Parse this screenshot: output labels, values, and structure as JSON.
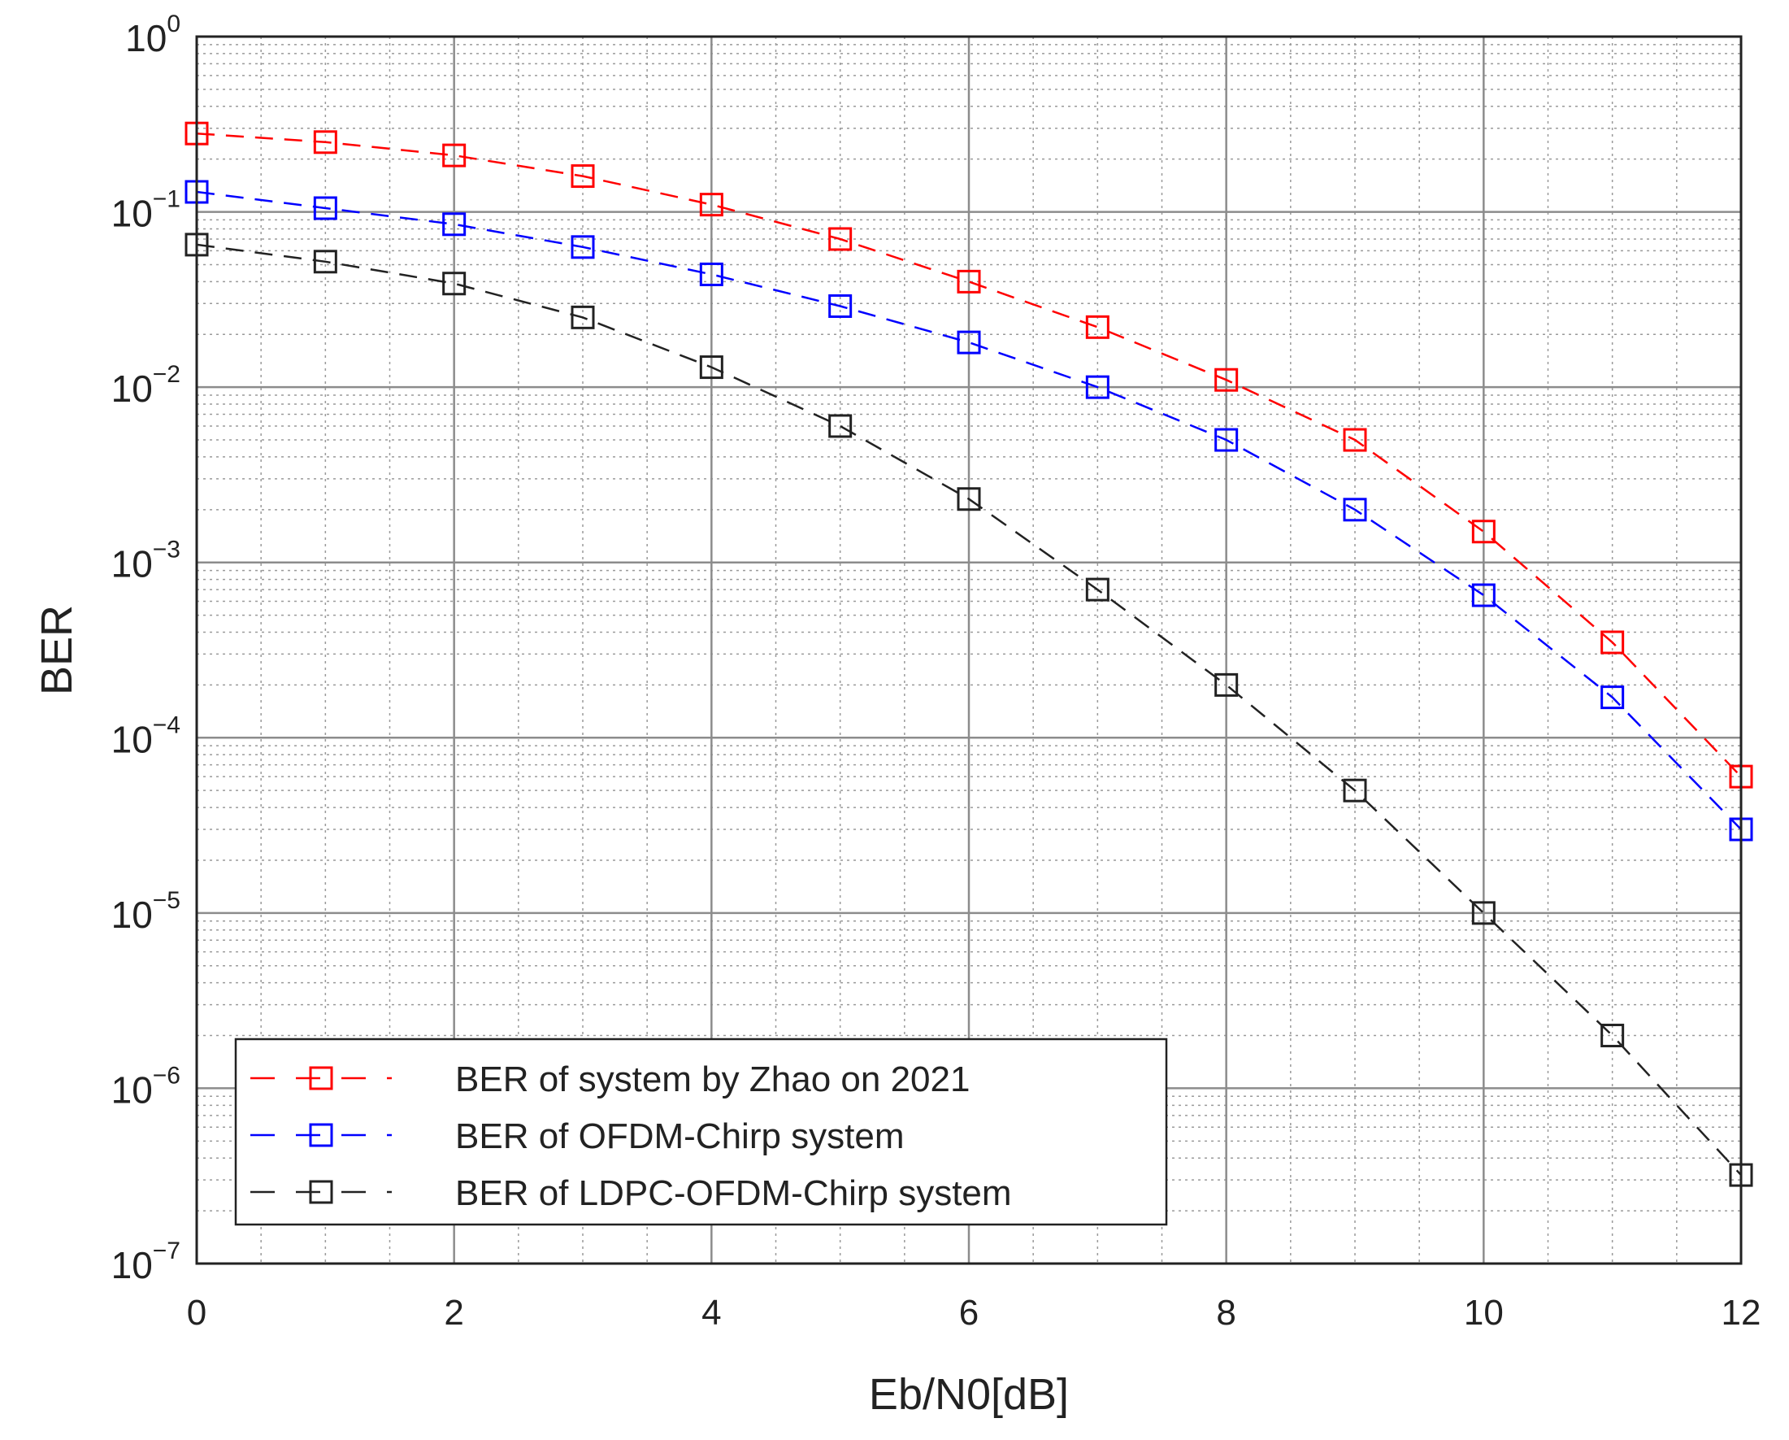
{
  "chart_data": {
    "type": "line",
    "xlabel": "Eb/N0[dB]",
    "ylabel": "BER",
    "xlim": [
      0,
      12
    ],
    "ylim": [
      1e-07,
      1
    ],
    "yscale": "log",
    "xticks": [
      "0",
      "2",
      "4",
      "6",
      "8",
      "10",
      "12"
    ],
    "yticks": [
      {
        "base": "10",
        "exp": "0"
      },
      {
        "base": "10",
        "exp": "−1"
      },
      {
        "base": "10",
        "exp": "−2"
      },
      {
        "base": "10",
        "exp": "−3"
      },
      {
        "base": "10",
        "exp": "−4"
      },
      {
        "base": "10",
        "exp": "−5"
      },
      {
        "base": "10",
        "exp": "−6"
      },
      {
        "base": "10",
        "exp": "−7"
      }
    ],
    "grid": true,
    "legend_position": "bottom-left",
    "x": [
      0,
      1,
      2,
      3,
      4,
      5,
      6,
      7,
      8,
      9,
      10,
      11,
      12
    ],
    "series": [
      {
        "name": "BER of system by Zhao on 2021",
        "color": "#ff0000",
        "marker": "square",
        "linestyle": "dashed",
        "values": [
          0.28,
          0.25,
          0.21,
          0.16,
          0.11,
          0.07,
          0.04,
          0.022,
          0.011,
          0.005,
          0.0015,
          0.00035,
          6e-05
        ]
      },
      {
        "name": "BER of OFDM-Chirp system",
        "color": "#0000ff",
        "marker": "square",
        "linestyle": "dashed",
        "values": [
          0.13,
          0.105,
          0.085,
          0.063,
          0.044,
          0.029,
          0.018,
          0.01,
          0.005,
          0.002,
          0.00065,
          0.00017,
          3e-05
        ]
      },
      {
        "name": "BER of LDPC-OFDM-Chirp system",
        "color": "#222222",
        "marker": "square",
        "linestyle": "dashed",
        "values": [
          0.065,
          0.052,
          0.039,
          0.025,
          0.013,
          0.006,
          0.0023,
          0.0007,
          0.0002,
          5e-05,
          1e-05,
          2e-06,
          3.2e-07
        ]
      }
    ]
  }
}
